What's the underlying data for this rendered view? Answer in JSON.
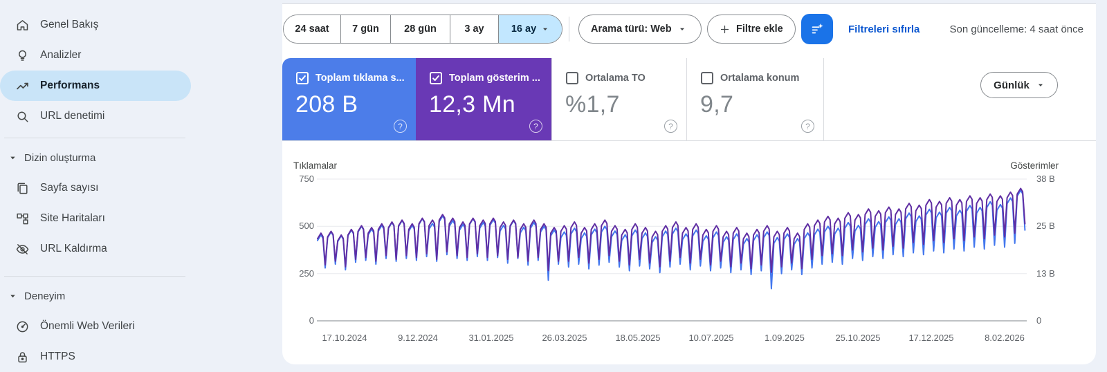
{
  "ui": {
    "help_glyph": "?"
  },
  "colors": {
    "filter_button": "#1a73e8",
    "link": "#0b57d0",
    "selected_chip": "#c2e7ff",
    "sidebar_selected_pill": "#c9e4f8",
    "clicks_card": "#4c7de9",
    "impressions_card": "#6939b5"
  },
  "sidebar": {
    "items": [
      {
        "label": "Genel Bakış",
        "icon": "home"
      },
      {
        "label": "Analizler",
        "icon": "lightbulb"
      },
      {
        "label": "Performans",
        "icon": "trending-up",
        "selected": true
      },
      {
        "label": "URL denetimi",
        "icon": "search"
      }
    ],
    "sections": [
      {
        "label": "Dizin oluşturma",
        "items": [
          {
            "label": "Sayfa sayısı",
            "icon": "pages"
          },
          {
            "label": "Site Haritaları",
            "icon": "sitemap"
          },
          {
            "label": "URL Kaldırma",
            "icon": "eye-off"
          }
        ]
      },
      {
        "label": "Deneyim",
        "items": [
          {
            "label": "Önemli Web Verileri",
            "icon": "gauge"
          },
          {
            "label": "HTTPS",
            "icon": "lock"
          }
        ]
      }
    ]
  },
  "toolbar": {
    "ranges": [
      "24 saat",
      "7 gün",
      "28 gün",
      "3 ay"
    ],
    "selected_range": "16 ay",
    "search_type": "Arama türü: Web",
    "add_filter": "Filtre ekle",
    "reset_filters": "Filtreleri sıfırla",
    "last_update": "Son güncelleme: 4 saat önce"
  },
  "metrics": {
    "cards": [
      {
        "label": "Toplam tıklama s...",
        "value": "208 B",
        "checked": true
      },
      {
        "label": "Toplam gösterim ...",
        "value": "12,3 Mn",
        "checked": true
      },
      {
        "label": "Ortalama TO",
        "value": "%1,7",
        "checked": false
      },
      {
        "label": "Ortalama konum",
        "value": "9,7",
        "checked": false
      }
    ]
  },
  "granularity_button": {
    "label": "Günlük"
  },
  "chart_data": {
    "type": "line",
    "sampling": "weekly_envelope (daily series over 16 months, values are estimated weekly peaks/troughs)",
    "x_tick_labels": [
      "17.10.2024",
      "9.12.2024",
      "31.01.2025",
      "26.03.2025",
      "18.05.2025",
      "10.07.2025",
      "1.09.2025",
      "25.10.2025",
      "17.12.2025",
      "8.02.2026"
    ],
    "left_axis": {
      "title": "Tıklamalar",
      "ticks": [
        750,
        500,
        250,
        0
      ],
      "range": [
        0,
        750
      ]
    },
    "right_axis": {
      "title": "Gösterimler",
      "ticks": [
        "38 B",
        "25 B",
        "13 B",
        "0"
      ],
      "range": [
        0,
        38
      ]
    },
    "grid": true,
    "series": [
      {
        "name": "Tıklamalar",
        "axis": "left",
        "color": "#4377ee",
        "peaks": [
          455,
          470,
          450,
          480,
          500,
          485,
          505,
          520,
          530,
          505,
          540,
          515,
          555,
          530,
          510,
          540,
          520,
          535,
          505,
          530,
          495,
          520,
          500,
          480,
          470,
          490,
          465,
          485,
          500,
          475,
          455,
          480,
          465,
          445,
          475,
          490,
          460,
          480,
          450,
          470,
          445,
          460,
          435,
          455,
          470,
          440,
          460,
          435,
          465,
          485,
          500,
          490,
          520,
          505,
          540,
          525,
          550,
          540,
          570,
          555,
          590,
          575,
          600,
          585,
          610,
          600,
          630,
          615,
          650,
          690
        ],
        "troughs": [
          280,
          300,
          270,
          310,
          320,
          300,
          330,
          315,
          330,
          320,
          340,
          315,
          350,
          330,
          320,
          340,
          320,
          335,
          305,
          330,
          295,
          320,
          215,
          300,
          285,
          300,
          275,
          295,
          310,
          285,
          265,
          290,
          275,
          255,
          285,
          300,
          270,
          290,
          265,
          280,
          255,
          270,
          245,
          265,
          170,
          250,
          270,
          245,
          280,
          300,
          310,
          300,
          330,
          320,
          340,
          330,
          350,
          340,
          360,
          350,
          370,
          360,
          380,
          370,
          390,
          380,
          400,
          390,
          410,
          480
        ]
      },
      {
        "name": "Gösterimler",
        "axis": "right",
        "color": "#5f2ea3",
        "peaks": [
          23.5,
          24,
          23,
          24.5,
          25.5,
          25,
          26,
          26.5,
          27,
          26,
          27.5,
          27,
          28.5,
          27.5,
          26.5,
          27.5,
          27,
          27.5,
          26.5,
          27,
          26,
          27,
          26,
          25,
          25.5,
          26.5,
          25,
          26,
          27,
          25.5,
          24.5,
          26,
          25,
          24,
          25.5,
          26.5,
          25,
          26,
          24.5,
          25.5,
          24,
          25,
          23.5,
          24.5,
          25.5,
          24,
          25,
          23.5,
          26,
          27,
          28,
          27.5,
          29,
          28.5,
          30,
          29.5,
          30.5,
          30,
          31.5,
          31,
          32.5,
          32,
          33,
          32.5,
          33.5,
          33,
          34,
          33.5,
          34.5,
          35.5
        ],
        "troughs": [
          15,
          16,
          14.5,
          16.5,
          17,
          16,
          17.5,
          16.5,
          17.5,
          17,
          18,
          16.5,
          18.5,
          17.5,
          17,
          18,
          17,
          17.5,
          16.5,
          17,
          16,
          17,
          13.5,
          16,
          16,
          17,
          15.5,
          16.5,
          17.5,
          16,
          15,
          16.5,
          15.5,
          14.5,
          16,
          17,
          15.5,
          16.5,
          15,
          16,
          14.5,
          15.5,
          14,
          15,
          13,
          14.5,
          15.5,
          14,
          16.5,
          17.5,
          18,
          17.5,
          19,
          18.5,
          19.5,
          19,
          20,
          19.5,
          21,
          20.5,
          21.5,
          21,
          22,
          21.5,
          22.5,
          22,
          23,
          22.5,
          23.5,
          26
        ]
      }
    ]
  }
}
